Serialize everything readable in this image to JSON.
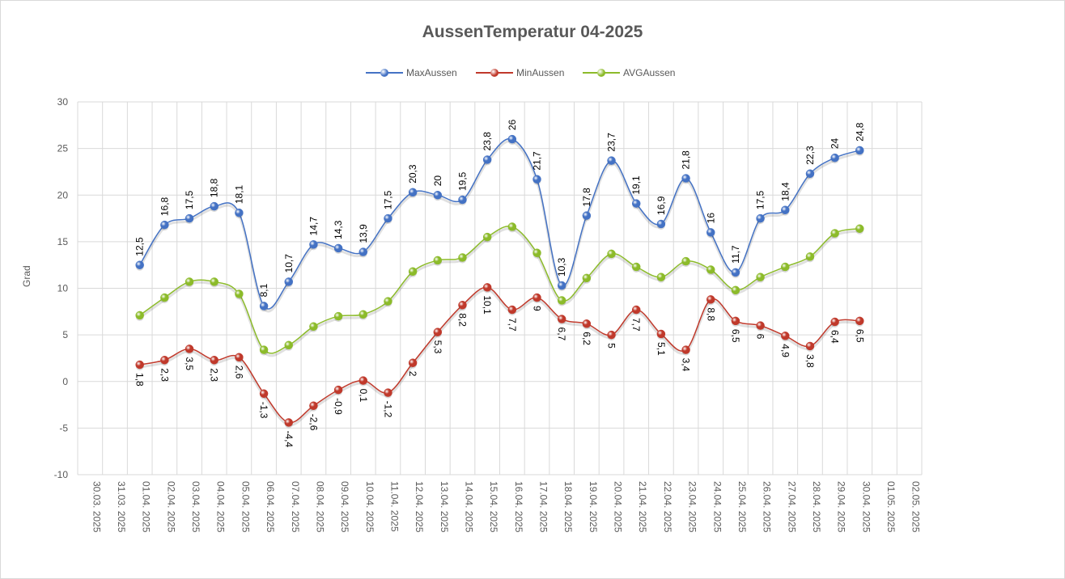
{
  "chart_data": {
    "type": "line",
    "title": "AussenTemperatur 04-2025",
    "xlabel": "",
    "ylabel": "Grad",
    "ylim": [
      -10,
      30
    ],
    "yticks": [
      30,
      25,
      20,
      15,
      10,
      5,
      0,
      -5,
      -10
    ],
    "grid": true,
    "legend_position": "top",
    "categories": [
      "30.03.2025",
      "31.03.2025",
      "01.04.2025",
      "02.04.2025",
      "03.04.2025",
      "04.04.2025",
      "05.04.2025",
      "06.04.2025",
      "07.04.2025",
      "08.04.2025",
      "09.04.2025",
      "10.04.2025",
      "11.04.2025",
      "12.04.2025",
      "13.04.2025",
      "14.04.2025",
      "15.04.2025",
      "16.04.2025",
      "17.04.2025",
      "18.04.2025",
      "19.04.2025",
      "20.04.2025",
      "21.04.2025",
      "22.04.2025",
      "23.04.2025",
      "24.04.2025",
      "25.04.2025",
      "26.04.2025",
      "27.04.2025",
      "28.04.2025",
      "29.04.2025",
      "30.04.2025",
      "01.05.2025",
      "02.05.2025"
    ],
    "category_labels": [
      "30.03. 2025",
      "31.03. 2025",
      "01.04. 2025",
      "02.04. 2025",
      "03.04. 2025",
      "04.04. 2025",
      "05.04. 2025",
      "06.04. 2025",
      "07.04. 2025",
      "08.04. 2025",
      "09.04. 2025",
      "10.04. 2025",
      "11.04. 2025",
      "12.04. 2025",
      "13.04. 2025",
      "14.04. 2025",
      "15.04. 2025",
      "16.04. 2025",
      "17.04. 2025",
      "18.04. 2025",
      "19.04. 2025",
      "20.04. 2025",
      "21.04. 2025",
      "22.04. 2025",
      "23.04. 2025",
      "24.04. 2025",
      "25.04. 2025",
      "26.04. 2025",
      "27.04. 2025",
      "28.04. 2025",
      "29.04. 2025",
      "30.04. 2025",
      "01.05. 2025",
      "02.05. 2025"
    ],
    "series": [
      {
        "name": "MaxAussen",
        "color": "#4472c4",
        "values": [
          null,
          null,
          12.5,
          16.8,
          17.5,
          18.8,
          18.1,
          8.1,
          10.7,
          14.7,
          14.3,
          13.9,
          17.5,
          20.3,
          20,
          19.5,
          23.8,
          26,
          21.7,
          10.3,
          17.8,
          23.7,
          19.1,
          16.9,
          21.8,
          16,
          11.7,
          17.5,
          18.4,
          22.3,
          24,
          24.8,
          null,
          null
        ],
        "labels": [
          null,
          null,
          "12,5",
          "16,8",
          "17,5",
          "18,8",
          "18,1",
          "8,1",
          "10,7",
          "14,7",
          "14,3",
          "13,9",
          "17,5",
          "20,3",
          "20",
          "19,5",
          "23,8",
          "26",
          "21,7",
          "10,3",
          "17,8",
          "23,7",
          "19,1",
          "16,9",
          "21,8",
          "16",
          "11,7",
          "17,5",
          "18,4",
          "22,3",
          "24",
          "24,8",
          null,
          null
        ],
        "label_position": "above"
      },
      {
        "name": "MinAussen",
        "color": "#c0392b",
        "values": [
          null,
          null,
          1.8,
          2.3,
          3.5,
          2.3,
          2.6,
          -1.3,
          -4.4,
          -2.6,
          -0.9,
          0.1,
          -1.2,
          2,
          5.3,
          8.2,
          10.1,
          7.7,
          9,
          6.7,
          6.2,
          5,
          7.7,
          5.1,
          3.4,
          8.8,
          6.5,
          6,
          4.9,
          3.8,
          6.4,
          6.5,
          null,
          null
        ],
        "labels": [
          null,
          null,
          "1,8",
          "2,3",
          "3,5",
          "2,3",
          "2,6",
          "-1,3",
          "-4,4",
          "-2,6",
          "-0,9",
          "0,1",
          "-1,2",
          "2",
          "5,3",
          "8,2",
          "10,1",
          "7,7",
          "9",
          "6,7",
          "6,2",
          "5",
          "7,7",
          "5,1",
          "3,4",
          "8,8",
          "6,5",
          "6",
          "4,9",
          "3,8",
          "6,4",
          "6,5",
          null,
          null
        ],
        "label_position": "below"
      },
      {
        "name": "AVGAussen",
        "color": "#8cbb2a",
        "values": [
          null,
          null,
          7.1,
          9,
          10.7,
          10.7,
          9.4,
          3.4,
          3.9,
          5.9,
          7,
          7.2,
          8.6,
          11.8,
          13,
          13.3,
          15.5,
          16.6,
          13.8,
          8.7,
          11.1,
          13.7,
          12.3,
          11.2,
          12.9,
          12,
          9.8,
          11.2,
          12.3,
          13.4,
          15.9,
          16.4,
          null,
          null
        ],
        "labels": null
      }
    ]
  }
}
